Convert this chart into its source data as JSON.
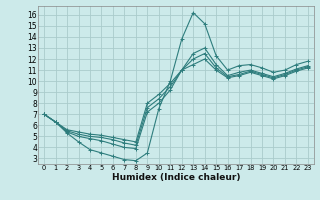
{
  "xlabel": "Humidex (Indice chaleur)",
  "bg_color": "#cceaea",
  "line_color": "#2e7d7d",
  "grid_color": "#aacccc",
  "xlim": [
    -0.5,
    23.5
  ],
  "ylim": [
    2.5,
    16.8
  ],
  "xticks": [
    0,
    1,
    2,
    3,
    4,
    5,
    6,
    7,
    8,
    9,
    10,
    11,
    12,
    13,
    14,
    15,
    16,
    17,
    18,
    19,
    20,
    21,
    22,
    23
  ],
  "yticks": [
    3,
    4,
    5,
    6,
    7,
    8,
    9,
    10,
    11,
    12,
    13,
    14,
    15,
    16
  ],
  "curve1_x": [
    0,
    1,
    2,
    3,
    4,
    5,
    6,
    7,
    8,
    9,
    10,
    11,
    12,
    13,
    14,
    15,
    16,
    17,
    18,
    19,
    20,
    21,
    22,
    23
  ],
  "curve1_y": [
    7.0,
    6.3,
    5.3,
    4.5,
    3.8,
    3.5,
    3.2,
    2.9,
    2.8,
    3.5,
    7.5,
    10.0,
    13.8,
    16.2,
    15.2,
    12.3,
    11.0,
    11.4,
    11.5,
    11.2,
    10.8,
    11.0,
    11.5,
    11.8
  ],
  "curve2_x": [
    0,
    1,
    2,
    3,
    4,
    5,
    6,
    7,
    8,
    9,
    10,
    11,
    12,
    13,
    14,
    15,
    16,
    17,
    18,
    19,
    20,
    21,
    22,
    23
  ],
  "curve2_y": [
    7.0,
    6.3,
    5.4,
    5.0,
    4.8,
    4.6,
    4.3,
    4.0,
    3.9,
    7.2,
    8.0,
    9.2,
    11.0,
    12.5,
    13.0,
    11.5,
    10.5,
    10.8,
    11.0,
    10.7,
    10.4,
    10.7,
    11.1,
    11.4
  ],
  "curve3_x": [
    0,
    1,
    2,
    3,
    4,
    5,
    6,
    7,
    8,
    9,
    10,
    11,
    12,
    13,
    14,
    15,
    16,
    17,
    18,
    19,
    20,
    21,
    22,
    23
  ],
  "curve3_y": [
    7.0,
    6.3,
    5.5,
    5.2,
    5.0,
    4.9,
    4.7,
    4.4,
    4.2,
    7.6,
    8.4,
    9.5,
    11.0,
    12.0,
    12.5,
    11.2,
    10.4,
    10.6,
    10.9,
    10.6,
    10.3,
    10.6,
    11.0,
    11.3
  ],
  "curve4_x": [
    0,
    1,
    2,
    3,
    4,
    5,
    6,
    7,
    8,
    9,
    10,
    11,
    12,
    13,
    14,
    15,
    16,
    17,
    18,
    19,
    20,
    21,
    22,
    23
  ],
  "curve4_y": [
    7.0,
    6.3,
    5.6,
    5.4,
    5.2,
    5.1,
    4.9,
    4.7,
    4.5,
    8.0,
    8.8,
    9.8,
    11.0,
    11.5,
    12.0,
    11.0,
    10.3,
    10.5,
    10.8,
    10.5,
    10.2,
    10.5,
    10.9,
    11.2
  ]
}
